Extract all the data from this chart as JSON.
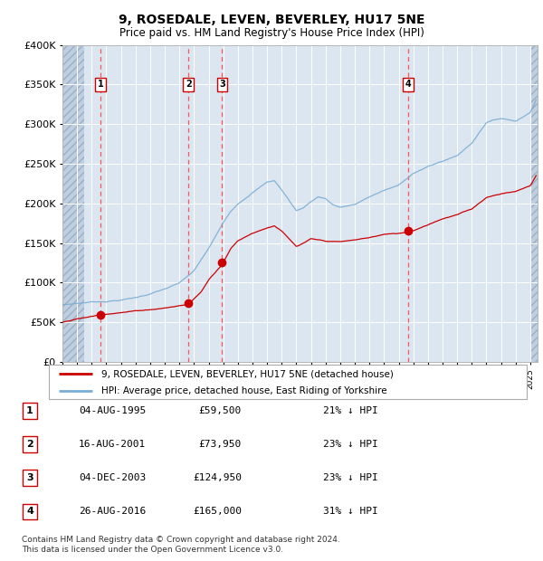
{
  "title": "9, ROSEDALE, LEVEN, BEVERLEY, HU17 5NE",
  "subtitle": "Price paid vs. HM Land Registry's House Price Index (HPI)",
  "bg_color": "#dce6f1",
  "red_line_color": "#cc0000",
  "blue_line_color": "#7aadd4",
  "sale_marker_color": "#cc0000",
  "vline_color": "#ff5555",
  "transactions": [
    {
      "num": 1,
      "date": "04-AUG-1995",
      "x": 1995.59,
      "price": 59500
    },
    {
      "num": 2,
      "date": "16-AUG-2001",
      "x": 2001.62,
      "price": 73950
    },
    {
      "num": 3,
      "date": "04-DEC-2003",
      "x": 2003.92,
      "price": 124950
    },
    {
      "num": 4,
      "date": "26-AUG-2016",
      "x": 2016.65,
      "price": 165000
    }
  ],
  "ylim": [
    0,
    400000
  ],
  "xlim": [
    1993.0,
    2025.5
  ],
  "yticks": [
    0,
    50000,
    100000,
    150000,
    200000,
    250000,
    300000,
    350000,
    400000
  ],
  "ytick_labels": [
    "£0",
    "£50K",
    "£100K",
    "£150K",
    "£200K",
    "£250K",
    "£300K",
    "£350K",
    "£400K"
  ],
  "legend_red": "9, ROSEDALE, LEVEN, BEVERLEY, HU17 5NE (detached house)",
  "legend_blue": "HPI: Average price, detached house, East Riding of Yorkshire",
  "footer": "Contains HM Land Registry data © Crown copyright and database right 2024.\nThis data is licensed under the Open Government Licence v3.0.",
  "table_rows": [
    [
      "1",
      "04-AUG-1995",
      "£59,500",
      "21% ↓ HPI"
    ],
    [
      "2",
      "16-AUG-2001",
      "£73,950",
      "23% ↓ HPI"
    ],
    [
      "3",
      "04-DEC-2003",
      "£124,950",
      "23% ↓ HPI"
    ],
    [
      "4",
      "26-AUG-2016",
      "£165,000",
      "31% ↓ HPI"
    ]
  ],
  "hpi_anchors_x": [
    1993.0,
    1994.0,
    1995.0,
    1996.0,
    1997.0,
    1998.0,
    1999.0,
    2000.0,
    2001.0,
    2002.0,
    2003.0,
    2004.0,
    2004.5,
    2005.0,
    2006.0,
    2007.0,
    2007.5,
    2008.0,
    2008.5,
    2009.0,
    2009.5,
    2010.0,
    2010.5,
    2011.0,
    2011.5,
    2012.0,
    2013.0,
    2014.0,
    2015.0,
    2016.0,
    2017.0,
    2018.0,
    2019.0,
    2020.0,
    2021.0,
    2022.0,
    2023.0,
    2024.0,
    2025.0,
    2025.4
  ],
  "hpi_anchors_y": [
    72000,
    74000,
    76000,
    77000,
    79000,
    82000,
    87000,
    93000,
    100000,
    115000,
    143000,
    175000,
    190000,
    200000,
    215000,
    228000,
    230000,
    218000,
    205000,
    192000,
    196000,
    204000,
    210000,
    208000,
    200000,
    197000,
    200000,
    210000,
    218000,
    224000,
    240000,
    248000,
    255000,
    262000,
    278000,
    305000,
    310000,
    307000,
    318000,
    335000
  ],
  "prop_anchors_x": [
    1993.0,
    1994.0,
    1995.0,
    1995.59,
    1996.5,
    1998.0,
    1999.5,
    2001.0,
    2001.62,
    2002.5,
    2003.0,
    2003.92,
    2004.5,
    2005.0,
    2006.0,
    2007.0,
    2007.5,
    2008.0,
    2008.5,
    2009.0,
    2009.5,
    2010.0,
    2011.0,
    2012.0,
    2013.0,
    2014.0,
    2015.0,
    2016.0,
    2016.65,
    2017.0,
    2018.0,
    2019.0,
    2020.0,
    2021.0,
    2022.0,
    2023.0,
    2024.0,
    2025.0,
    2025.4
  ],
  "prop_anchors_y": [
    50000,
    54000,
    57000,
    59500,
    62000,
    65000,
    68000,
    72000,
    73950,
    90000,
    105000,
    124950,
    145000,
    155000,
    165000,
    172000,
    175000,
    168000,
    158000,
    148000,
    152000,
    157000,
    154000,
    153000,
    155000,
    158000,
    162000,
    163000,
    165000,
    167000,
    175000,
    183000,
    188000,
    195000,
    210000,
    215000,
    218000,
    225000,
    238000
  ]
}
